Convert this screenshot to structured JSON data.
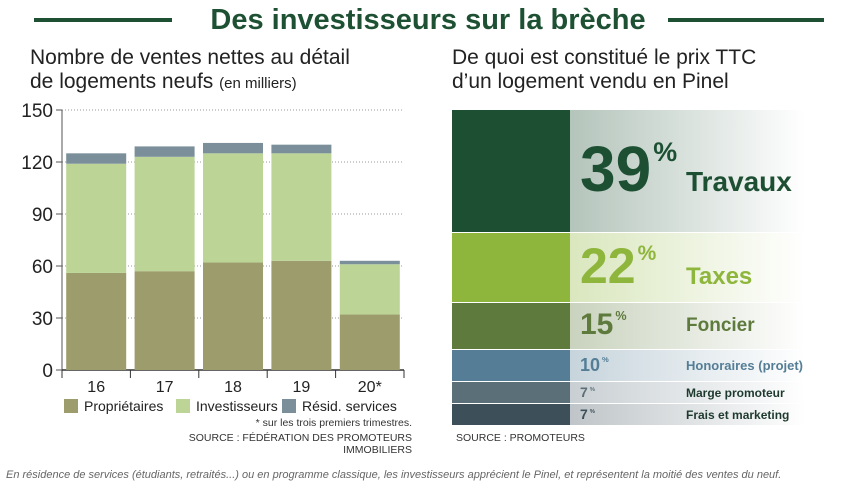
{
  "header": {
    "title": "Des investisseurs sur la brèche",
    "accent_color": "#1e5133"
  },
  "left_panel": {
    "title_line1": "Nombre de ventes nettes au détail",
    "title_line2": "de logements neufs",
    "title_unit": "(en milliers)",
    "footnote": "* sur les trois premiers trimestres.",
    "source": "SOURCE : FÉDÉRATION DES PROMOTEURS IMMOBILIERS"
  },
  "right_panel": {
    "title_line1": "De quoi est constitué le prix TTC",
    "title_line2": "d’un logement vendu en Pinel",
    "source": "SOURCE : PROMOTEURS",
    "percent_sign": "%"
  },
  "caption": "En résidence de services (étudiants, retraités...) ou en programme classique, les investisseurs apprécient le Pinel, et représentent la moitié des ventes du neuf.",
  "chart_data": [
    {
      "type": "bar",
      "stacked": true,
      "categories": [
        "16",
        "17",
        "18",
        "19",
        "20*"
      ],
      "series": [
        {
          "name": "Propriétaires",
          "color": "#9c9c6c",
          "values": [
            56,
            57,
            62,
            63,
            32
          ]
        },
        {
          "name": "Investisseurs",
          "color": "#bcd597",
          "values": [
            63,
            66,
            63,
            62,
            29
          ]
        },
        {
          "name": "Résid. services",
          "color": "#7b8f9a",
          "values": [
            6,
            6,
            6,
            5,
            2
          ]
        }
      ],
      "yticks": [
        0,
        30,
        60,
        90,
        120,
        150
      ],
      "ylim": [
        0,
        150
      ],
      "grid": true,
      "legend": "bottom"
    },
    {
      "type": "bar",
      "stacked": true,
      "categories": [
        "Travaux",
        "Taxes",
        "Foncier",
        "Honoraires (projet)",
        "Marge promoteur",
        "Frais et marketing"
      ],
      "values": [
        39,
        22,
        15,
        10,
        7,
        7
      ],
      "unit": "%",
      "colors": [
        "#1d4f33",
        "#8fb63c",
        "#5e7a3c",
        "#557e96",
        "#5b6f79",
        "#3d5059"
      ],
      "text_colors": [
        "#1d4f33",
        "#8fb63c",
        "#5e7a3c",
        "#557e96",
        "#5b6f79",
        "#3d5059"
      ]
    }
  ]
}
